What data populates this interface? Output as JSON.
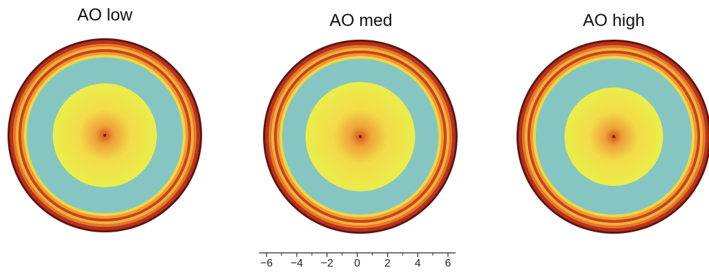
{
  "panels": [
    {
      "title": "AO low"
    },
    {
      "title": "AO med"
    },
    {
      "title": "AO high"
    }
  ],
  "scale": {
    "lim": [
      -6.5,
      6.5
    ],
    "ticks": [
      {
        "value": -6,
        "label": "−6"
      },
      {
        "value": -4,
        "label": "−4"
      },
      {
        "value": -2,
        "label": "−2"
      },
      0,
      2,
      4,
      6
    ],
    "minor_ticks": [
      -5,
      -3,
      -1,
      1,
      3,
      5
    ]
  }
}
